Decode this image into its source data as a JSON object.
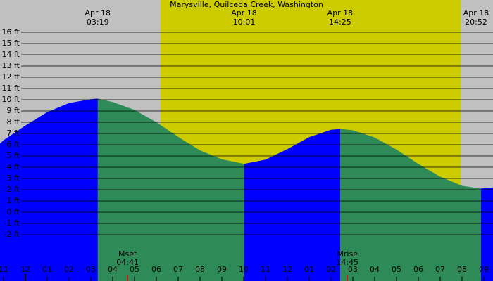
{
  "chart_data": {
    "type": "tide",
    "title": "Marysville, Quilceda Creek, Washington",
    "xlim": [
      -1.16,
      21.42
    ],
    "ylim": [
      -6.125,
      18.875
    ],
    "xticks": [
      {
        "value": -1,
        "label": "11"
      },
      {
        "value": 0,
        "label": "12"
      },
      {
        "value": 1,
        "label": "01"
      },
      {
        "value": 2,
        "label": "02"
      },
      {
        "value": 3,
        "label": "03"
      },
      {
        "value": 4,
        "label": "04"
      },
      {
        "value": 5,
        "label": "05"
      },
      {
        "value": 6,
        "label": "06"
      },
      {
        "value": 7,
        "label": "07"
      },
      {
        "value": 8,
        "label": "08"
      },
      {
        "value": 9,
        "label": "09"
      },
      {
        "value": 10,
        "label": "10"
      },
      {
        "value": 11,
        "label": "11"
      },
      {
        "value": 12,
        "label": "12"
      },
      {
        "value": 13,
        "label": "01"
      },
      {
        "value": 14,
        "label": "02"
      },
      {
        "value": 15,
        "label": "03"
      },
      {
        "value": 16,
        "label": "04"
      },
      {
        "value": 17,
        "label": "05"
      },
      {
        "value": 18,
        "label": "06"
      },
      {
        "value": 19,
        "label": "07"
      },
      {
        "value": 20,
        "label": "08"
      },
      {
        "value": 21,
        "label": "09"
      }
    ],
    "yticks": [
      {
        "value": 16,
        "label": "16 ft"
      },
      {
        "value": 15,
        "label": "15 ft"
      },
      {
        "value": 14,
        "label": "14 ft"
      },
      {
        "value": 13,
        "label": "13 ft"
      },
      {
        "value": 12,
        "label": "12 ft"
      },
      {
        "value": 11,
        "label": "11 ft"
      },
      {
        "value": 10,
        "label": "10 ft"
      },
      {
        "value": 9,
        "label": "9 ft"
      },
      {
        "value": 8,
        "label": "8 ft"
      },
      {
        "value": 7,
        "label": "7 ft"
      },
      {
        "value": 6,
        "label": "6 ft"
      },
      {
        "value": 5,
        "label": "5 ft"
      },
      {
        "value": 4,
        "label": "4 ft"
      },
      {
        "value": 3,
        "label": "3 ft"
      },
      {
        "value": 2,
        "label": "2 ft"
      },
      {
        "value": 1,
        "label": "1 ft"
      },
      {
        "value": 0,
        "label": "0 ft"
      },
      {
        "value": -1,
        "label": "-1 ft"
      },
      {
        "value": -2,
        "label": "-2 ft"
      }
    ],
    "daylight": [
      6.19,
      19.94
    ],
    "x": [
      -1.16,
      -1,
      0,
      1,
      2,
      3,
      3.32,
      4,
      5,
      6,
      7,
      8,
      9,
      10.02,
      11,
      12,
      13,
      14,
      14.42,
      15,
      16,
      17,
      18,
      19,
      20,
      20.87,
      21.42
    ],
    "values": [
      6.1,
      6.4,
      7.7,
      8.9,
      9.7,
      10.05,
      10.1,
      9.8,
      9.1,
      8.0,
      6.7,
      5.5,
      4.7,
      4.3,
      4.67,
      5.61,
      6.67,
      7.33,
      7.4,
      7.29,
      6.65,
      5.57,
      4.29,
      3.16,
      2.34,
      2.1,
      2.2
    ],
    "rising_color": "#0000ff",
    "falling_color": "#2e8b57",
    "day_color": "#cccc00",
    "night_color": "#c0c0c0",
    "events": [
      {
        "date": "Apr 18",
        "time": "03:19"
      },
      {
        "date": "Apr 18",
        "time": "10:01"
      },
      {
        "date": "Apr 18",
        "time": "14:25"
      },
      {
        "date": "Apr 18",
        "time": "20:52"
      }
    ],
    "moon": [
      {
        "label": "Mset",
        "time": "04:41"
      },
      {
        "label": "Mrise",
        "time": "14:45"
      }
    ]
  }
}
